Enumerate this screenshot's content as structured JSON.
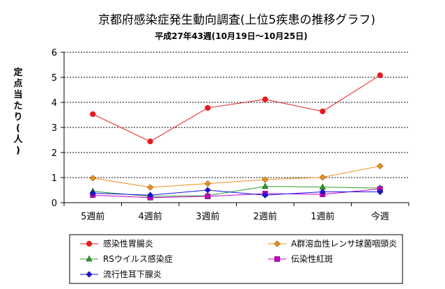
{
  "chart_data": {
    "type": "line",
    "title": "京都府感染症発生動向調査(上位5疾患の推移グラフ)",
    "subtitle": "平成27年43週(10月19日～10月25日)",
    "xlabel": "",
    "ylabel": "定点当たり(人)",
    "categories": [
      "5週前",
      "4週前",
      "3週前",
      "2週前",
      "1週前",
      "今週"
    ],
    "ylim": [
      0,
      6
    ],
    "yticks": [
      "0",
      "1",
      "2",
      "3",
      "4",
      "5",
      "6"
    ],
    "grid": "horizontal-dashed",
    "legend_position": "bottom",
    "series": [
      {
        "name": "感染性胃腸炎",
        "color": "#e8191c",
        "marker": "circle",
        "values": [
          3.53,
          2.44,
          3.78,
          4.12,
          3.64,
          5.08
        ]
      },
      {
        "name": "A群溶血性レンサ球菌咽頭炎",
        "color": "#f08c14",
        "marker": "diamond",
        "values": [
          0.98,
          0.61,
          0.76,
          0.92,
          1.01,
          1.46
        ]
      },
      {
        "name": "RSウイルス感染症",
        "color": "#2e9c2e",
        "marker": "triangle",
        "values": [
          0.45,
          0.25,
          0.28,
          0.65,
          0.62,
          0.58
        ]
      },
      {
        "name": "伝染性紅斑",
        "color": "#c800c8",
        "marker": "square",
        "values": [
          0.3,
          0.2,
          0.25,
          0.36,
          0.33,
          0.55
        ]
      },
      {
        "name": "流行性耳下腺炎",
        "color": "#1414e6",
        "marker": "diamond",
        "values": [
          0.38,
          0.3,
          0.5,
          0.3,
          0.43,
          0.43
        ]
      }
    ]
  }
}
